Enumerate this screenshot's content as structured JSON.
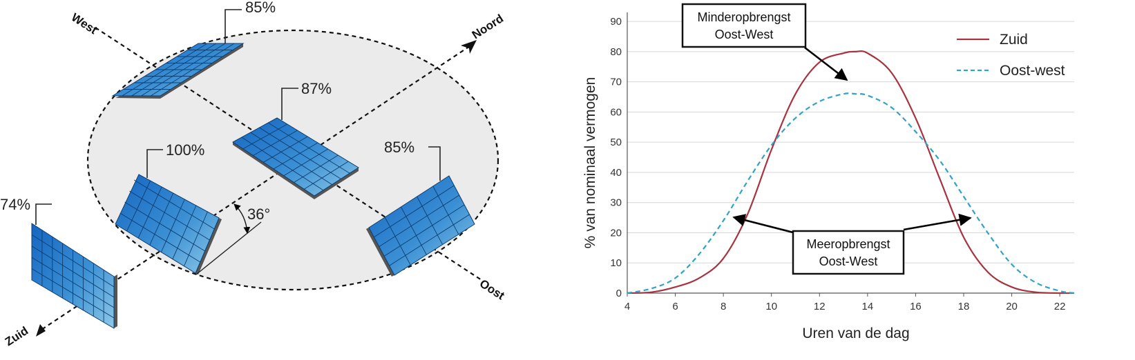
{
  "diagram": {
    "directions": {
      "west": "West",
      "north": "Noord",
      "east": "Oost",
      "south": "Zuid"
    },
    "panels": [
      {
        "id": "northwest",
        "percent": "85%"
      },
      {
        "id": "center",
        "percent": "87%"
      },
      {
        "id": "south-tilted",
        "percent": "100%"
      },
      {
        "id": "east",
        "percent": "85%"
      },
      {
        "id": "south-vertical",
        "percent": "74%"
      }
    ],
    "tilt_angle": "36°",
    "colors": {
      "ellipse_fill": "#ebebeb",
      "panel_dark": "#1565c0",
      "panel_light": "#8ec9e8"
    }
  },
  "chart_data": {
    "type": "line",
    "xlabel": "Uren van de dag",
    "ylabel": "% van nominaal vermogen",
    "xlim": [
      4,
      22.6
    ],
    "ylim": [
      0,
      93
    ],
    "x_ticks": [
      4,
      6,
      8,
      10,
      12,
      14,
      16,
      18,
      20,
      22
    ],
    "y_ticks": [
      0,
      10,
      20,
      30,
      40,
      50,
      60,
      70,
      80,
      90
    ],
    "grid": "horizontal",
    "legend_position": "top-right",
    "x": [
      4,
      5,
      6,
      7,
      8,
      9,
      10,
      11,
      12,
      13,
      13.5,
      14,
      15,
      16,
      17,
      18,
      19,
      20,
      21,
      22,
      22.6
    ],
    "series": [
      {
        "name": "Zuid",
        "color": "#a8323e",
        "style": "solid",
        "values": [
          0,
          0.3,
          2,
          5,
          11.5,
          26,
          47.5,
          66,
          76.5,
          79.5,
          80,
          79.5,
          73,
          58,
          38,
          18.5,
          7,
          2,
          0.3,
          0,
          0
        ]
      },
      {
        "name": "Oost-west",
        "color": "#2ea3c9",
        "style": "dashed",
        "values": [
          0,
          1.5,
          5,
          13,
          24,
          37,
          49,
          58,
          63.5,
          66,
          66,
          65.5,
          61.5,
          53.5,
          44,
          32,
          20,
          9.5,
          3.5,
          0.7,
          0
        ]
      }
    ],
    "annotations": [
      {
        "lines": [
          "Minderopbrengst",
          "Oost-West"
        ]
      },
      {
        "lines": [
          "Meeropbrengst",
          "Oost-West"
        ]
      }
    ]
  }
}
